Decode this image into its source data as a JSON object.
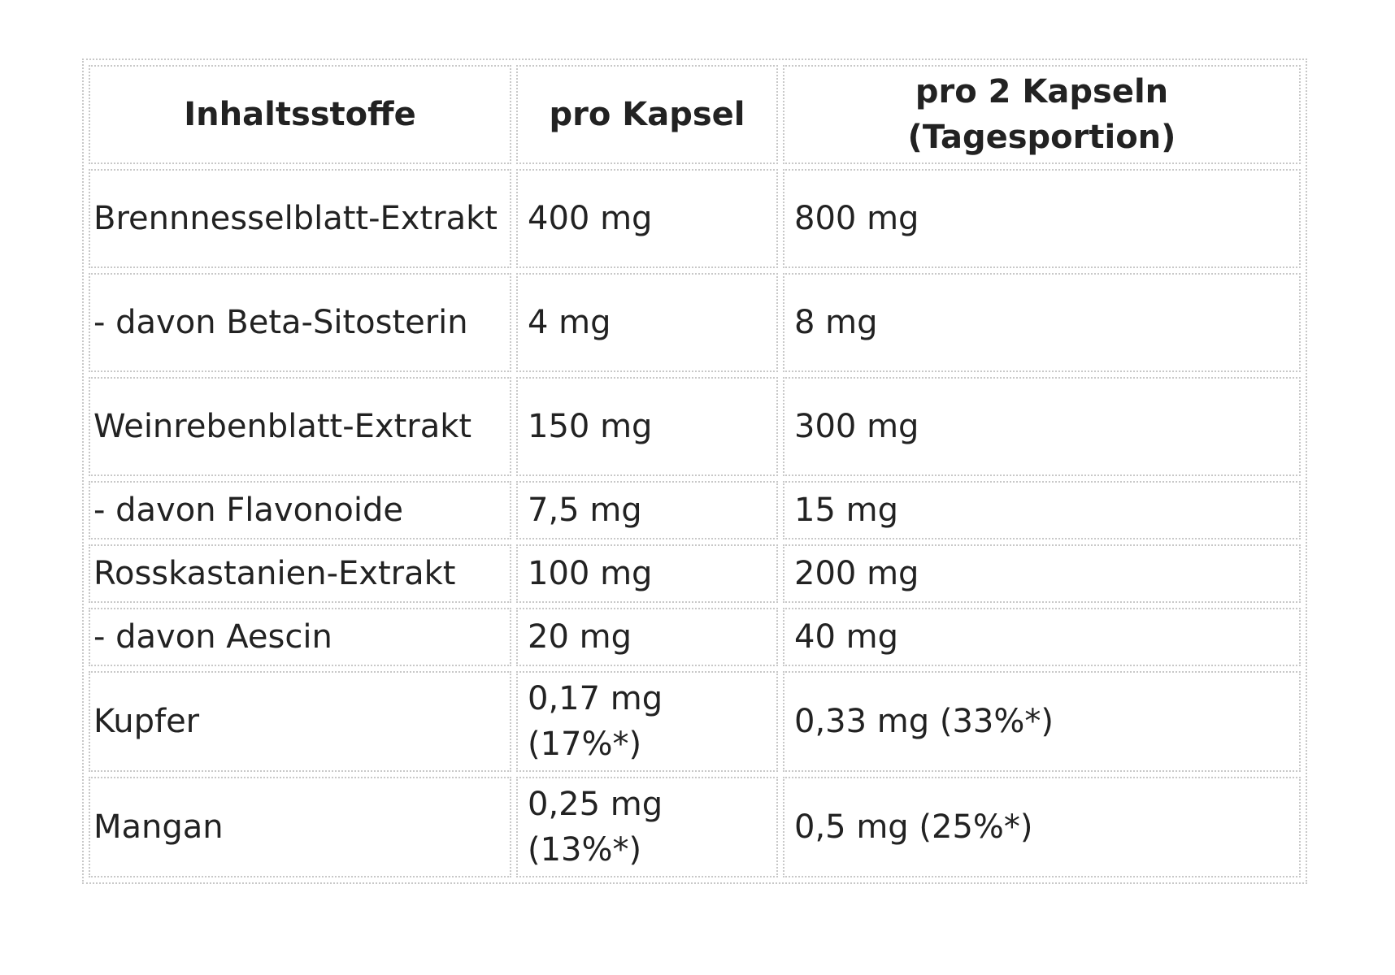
{
  "table": {
    "header": [
      "Inhaltsstoffe",
      "pro Kapsel",
      "pro 2 Kapseln\n(Tagesportion)"
    ],
    "rows": [
      [
        "Brennnesselblatt-Extrakt",
        "400 mg",
        "800 mg"
      ],
      [
        "- davon Beta-Sitosterin",
        "4 mg",
        "8 mg"
      ],
      [
        "Weinrebenblatt-Extrakt",
        "150 mg",
        "300 mg"
      ],
      [
        "- davon Flavonoide",
        "7,5 mg",
        "15 mg"
      ],
      [
        "Rosskastanien-Extrakt",
        "100 mg",
        "200 mg"
      ],
      [
        "- davon Aescin",
        "20 mg",
        "40 mg"
      ],
      [
        "Kupfer",
        "0,17 mg (17%*)",
        "0,33 mg (33%*)"
      ],
      [
        "Mangan",
        "0,25 mg (13%*)",
        "0,5 mg (25%*)"
      ]
    ]
  }
}
